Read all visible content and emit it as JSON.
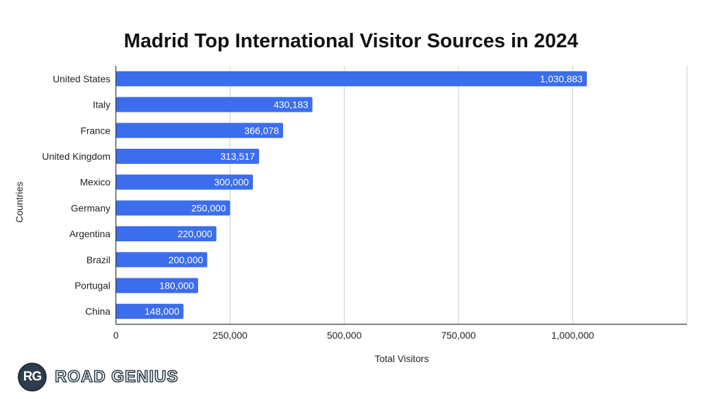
{
  "chart_data": {
    "type": "bar",
    "orientation": "horizontal",
    "title": "Madrid Top International Visitor Sources in 2024",
    "xlabel": "Total Visitors",
    "ylabel": "Countries",
    "categories": [
      "United States",
      "Italy",
      "France",
      "United Kingdom",
      "Mexico",
      "Germany",
      "Argentina",
      "Brazil",
      "Portugal",
      "China"
    ],
    "values": [
      1030883,
      430183,
      366078,
      313517,
      300000,
      250000,
      220000,
      200000,
      180000,
      148000
    ],
    "value_labels": [
      "1,030,883",
      "430,183",
      "366,078",
      "313,517",
      "300,000",
      "250,000",
      "220,000",
      "200,000",
      "180,000",
      "148,000"
    ],
    "xlim": [
      0,
      1250000
    ],
    "xticks": [
      0,
      250000,
      500000,
      750000,
      1000000
    ],
    "xtick_labels": [
      "0",
      "250,000",
      "500,000",
      "750,000",
      "1,000,000"
    ],
    "grid": "vertical",
    "legend": "none",
    "bar_color": "#3b6ded",
    "grid_color": "#cccccc",
    "axis_color": "#333333"
  },
  "logo": {
    "initials": "RG",
    "wordmark": "ROAD GENIUS"
  }
}
